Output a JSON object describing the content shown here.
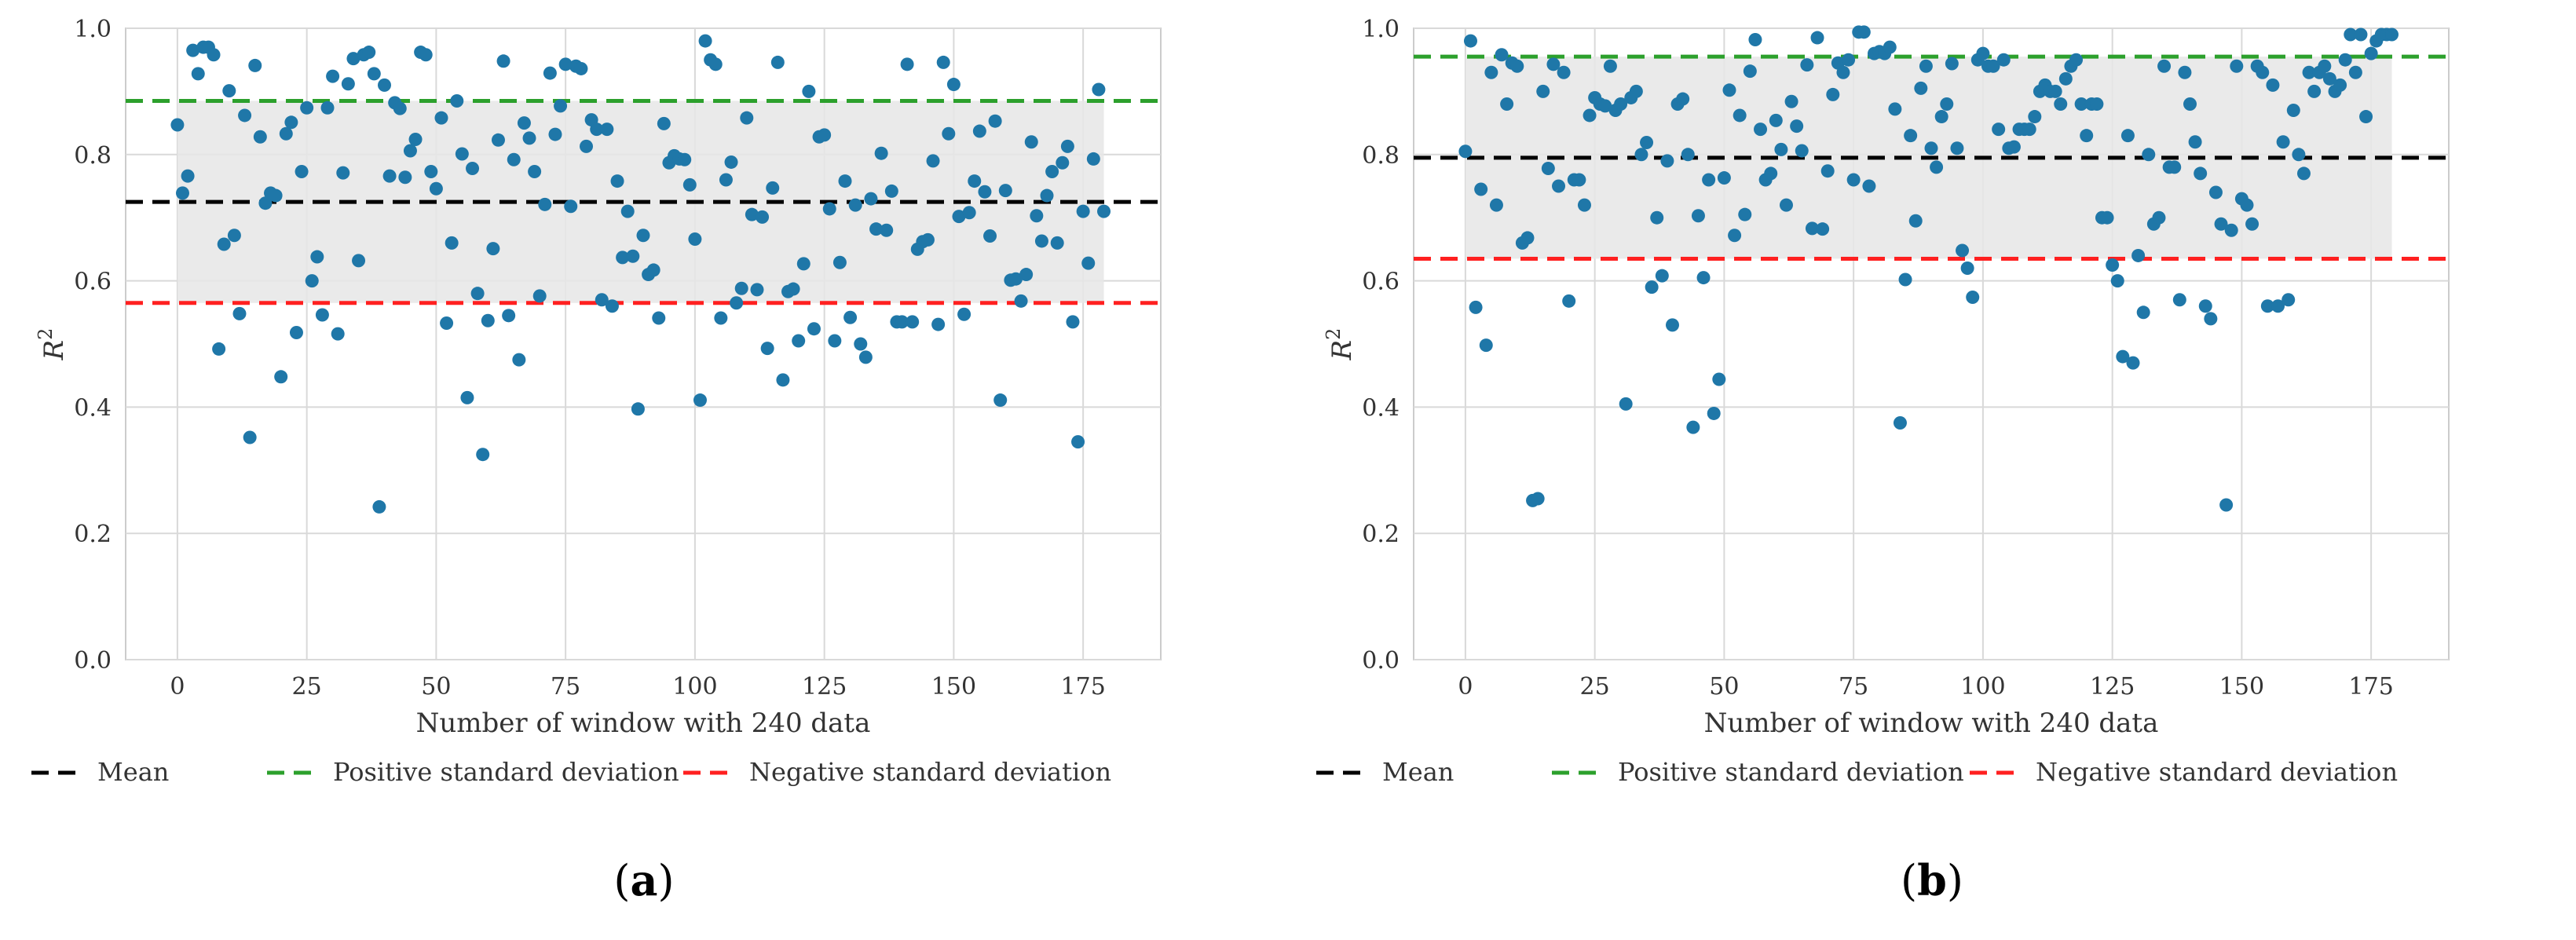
{
  "figure": {
    "panels": [
      {
        "label": "(a)",
        "letter": "a"
      },
      {
        "label": "(b)",
        "letter": "b"
      }
    ]
  },
  "chart_data": [
    {
      "type": "scatter",
      "title": "",
      "xlabel": "Number of window with 240 data",
      "ylabel": "R",
      "ylabel_superscript": "2",
      "xlim": [
        -10,
        190
      ],
      "ylim": [
        0,
        1
      ],
      "xticks": [
        0,
        25,
        50,
        75,
        100,
        125,
        150,
        175
      ],
      "yticks": [
        0.0,
        0.2,
        0.4,
        0.6,
        0.8,
        1.0
      ],
      "grid": true,
      "point_color": "#1f77a8",
      "band_color": "#e6e6e6",
      "band": {
        "x": [
          0,
          179
        ],
        "y": [
          0.565,
          0.885
        ]
      },
      "lines": {
        "mean": 0.725,
        "positive_std": 0.885,
        "negative_std": 0.565
      },
      "legend": {
        "position": "bottom",
        "entries": [
          {
            "label": "Mean",
            "color": "#000000"
          },
          {
            "label": "Positive standard deviation",
            "color": "#2ca02c"
          },
          {
            "label": "Negative standard deviation",
            "color": "#ff2020"
          }
        ]
      },
      "series": [
        {
          "name": "R2",
          "y": [
            0.847,
            0.739,
            0.766,
            0.965,
            0.928,
            0.97,
            0.97,
            0.958,
            0.492,
            0.658,
            0.901,
            0.672,
            0.548,
            0.862,
            0.352,
            0.941,
            0.828,
            0.723,
            0.739,
            0.735,
            0.448,
            0.833,
            0.851,
            0.518,
            0.773,
            0.874,
            0.6,
            0.638,
            0.546,
            0.874,
            0.924,
            0.516,
            0.771,
            0.912,
            0.952,
            0.632,
            0.958,
            0.962,
            0.928,
            0.242,
            0.91,
            0.766,
            0.882,
            0.873,
            0.764,
            0.806,
            0.824,
            0.962,
            0.958,
            0.773,
            0.746,
            0.858,
            0.533,
            0.66,
            0.885,
            0.801,
            0.415,
            0.778,
            0.58,
            0.325,
            0.537,
            0.651,
            0.823,
            0.948,
            0.545,
            0.792,
            0.475,
            0.85,
            0.826,
            0.773,
            0.576,
            0.721,
            0.929,
            0.832,
            0.877,
            0.943,
            0.718,
            0.94,
            0.936,
            0.813,
            0.855,
            0.84,
            0.57,
            0.84,
            0.56,
            0.758,
            0.637,
            0.71,
            0.639,
            0.397,
            0.672,
            0.61,
            0.617,
            0.541,
            0.849,
            0.787,
            0.798,
            0.793,
            0.792,
            0.752,
            0.666,
            0.411,
            0.98,
            0.95,
            0.943,
            0.541,
            0.76,
            0.788,
            0.565,
            0.588,
            0.858,
            0.705,
            0.586,
            0.701,
            0.493,
            0.747,
            0.946,
            0.443,
            0.583,
            0.587,
            0.505,
            0.627,
            0.9,
            0.524,
            0.828,
            0.831,
            0.714,
            0.505,
            0.629,
            0.758,
            0.542,
            0.72,
            0.5,
            0.479,
            0.73,
            0.682,
            0.802,
            0.68,
            0.742,
            0.535,
            0.535,
            0.943,
            0.535,
            0.65,
            0.662,
            0.665,
            0.79,
            0.531,
            0.946,
            0.833,
            0.911,
            0.702,
            0.547,
            0.708,
            0.758,
            0.837,
            0.741,
            0.671,
            0.853,
            0.411,
            0.743,
            0.601,
            0.603,
            0.568,
            0.61,
            0.82,
            0.703,
            0.663,
            0.735,
            0.773,
            0.66,
            0.787,
            0.813,
            0.535,
            0.345,
            0.71,
            0.628,
            0.793,
            0.903,
            0.71
          ]
        }
      ]
    },
    {
      "type": "scatter",
      "title": "",
      "xlabel": "Number of window with 240 data",
      "ylabel": "R",
      "ylabel_superscript": "2",
      "xlim": [
        -10,
        190
      ],
      "ylim": [
        0,
        1
      ],
      "xticks": [
        0,
        25,
        50,
        75,
        100,
        125,
        150,
        175
      ],
      "yticks": [
        0.0,
        0.2,
        0.4,
        0.6,
        0.8,
        1.0
      ],
      "grid": true,
      "point_color": "#1f77a8",
      "band_color": "#e6e6e6",
      "band": {
        "x": [
          0,
          179
        ],
        "y": [
          0.635,
          0.955
        ]
      },
      "lines": {
        "mean": 0.795,
        "positive_std": 0.955,
        "negative_std": 0.635
      },
      "legend": {
        "position": "bottom",
        "entries": [
          {
            "label": "Mean",
            "color": "#000000"
          },
          {
            "label": "Positive standard deviation",
            "color": "#2ca02c"
          },
          {
            "label": "Negative standard deviation",
            "color": "#ff2020"
          }
        ]
      },
      "series": [
        {
          "name": "R2",
          "y": [
            0.805,
            0.98,
            0.558,
            0.745,
            0.498,
            0.93,
            0.72,
            0.958,
            0.88,
            0.945,
            0.94,
            0.66,
            0.668,
            0.252,
            0.255,
            0.9,
            0.778,
            0.943,
            0.75,
            0.93,
            0.568,
            0.76,
            0.76,
            0.72,
            0.862,
            0.89,
            0.88,
            0.877,
            0.94,
            0.87,
            0.88,
            0.405,
            0.89,
            0.9,
            0.8,
            0.819,
            0.59,
            0.7,
            0.608,
            0.79,
            0.53,
            0.88,
            0.888,
            0.8,
            0.368,
            0.703,
            0.605,
            0.76,
            0.39,
            0.444,
            0.763,
            0.902,
            0.672,
            0.862,
            0.705,
            0.932,
            0.982,
            0.84,
            0.76,
            0.77,
            0.854,
            0.808,
            0.72,
            0.884,
            0.845,
            0.806,
            0.942,
            0.683,
            0.985,
            0.682,
            0.774,
            0.895,
            0.945,
            0.93,
            0.95,
            0.76,
            0.994,
            0.994,
            0.75,
            0.96,
            0.963,
            0.96,
            0.97,
            0.872,
            0.375,
            0.602,
            0.83,
            0.695,
            0.905,
            0.94,
            0.81,
            0.78,
            0.86,
            0.88,
            0.944,
            0.81,
            0.648,
            0.62,
            0.574,
            0.95,
            0.96,
            0.94,
            0.94,
            0.84,
            0.95,
            0.81,
            0.812,
            0.84,
            0.84,
            0.84,
            0.86,
            0.9,
            0.91,
            0.9,
            0.9,
            0.88,
            0.92,
            0.94,
            0.95,
            0.88,
            0.83,
            0.88,
            0.88,
            0.7,
            0.7,
            0.625,
            0.6,
            0.48,
            0.83,
            0.47,
            0.64,
            0.55,
            0.8,
            0.69,
            0.7,
            0.94,
            0.78,
            0.78,
            0.57,
            0.93,
            0.88,
            0.82,
            0.77,
            0.56,
            0.54,
            0.74,
            0.69,
            0.245,
            0.68,
            0.94,
            0.73,
            0.72,
            0.69,
            0.94,
            0.93,
            0.56,
            0.91,
            0.56,
            0.82,
            0.57,
            0.87,
            0.8,
            0.77,
            0.93,
            0.9,
            0.93,
            0.94,
            0.92,
            0.9,
            0.91,
            0.95,
            0.99,
            0.93,
            0.99,
            0.86,
            0.96,
            0.98,
            0.99,
            0.99,
            0.99
          ]
        }
      ]
    }
  ]
}
